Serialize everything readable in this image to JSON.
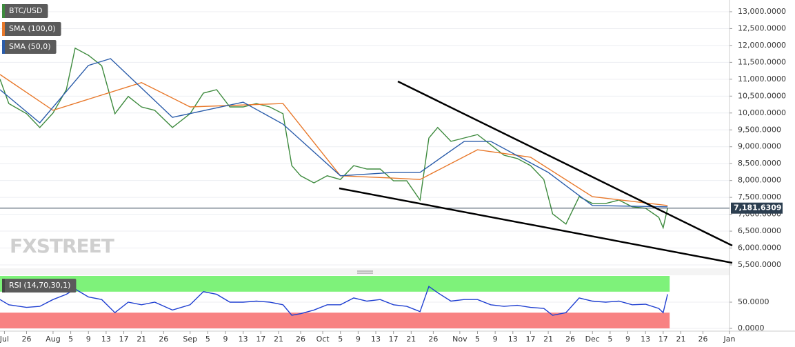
{
  "chart_data": [
    {
      "type": "line",
      "title": "BTC/USD",
      "watermark": "FXSTREET",
      "xlim": [
        "Jul 20",
        "Jan 1"
      ],
      "xticks": [
        {
          "value": "Jul 21",
          "label": "Jul"
        },
        {
          "value": "Jul 26",
          "label": "26"
        },
        {
          "value": "Aug 1",
          "label": "Aug"
        },
        {
          "value": "Aug 5",
          "label": "5"
        },
        {
          "value": "Aug 9",
          "label": "9"
        },
        {
          "value": "Aug 13",
          "label": "13"
        },
        {
          "value": "Aug 17",
          "label": "17"
        },
        {
          "value": "Aug 21",
          "label": "21"
        },
        {
          "value": "Aug 26",
          "label": "26"
        },
        {
          "value": "Sep 1",
          "label": "Sep"
        },
        {
          "value": "Sep 5",
          "label": "5"
        },
        {
          "value": "Sep 9",
          "label": "9"
        },
        {
          "value": "Sep 13",
          "label": "13"
        },
        {
          "value": "Sep 17",
          "label": "17"
        },
        {
          "value": "Sep 21",
          "label": "21"
        },
        {
          "value": "Sep 26",
          "label": "26"
        },
        {
          "value": "Oct 1",
          "label": "Oct"
        },
        {
          "value": "Oct 5",
          "label": "5"
        },
        {
          "value": "Oct 9",
          "label": "9"
        },
        {
          "value": "Oct 13",
          "label": "13"
        },
        {
          "value": "Oct 17",
          "label": "17"
        },
        {
          "value": "Oct 21",
          "label": "21"
        },
        {
          "value": "Oct 26",
          "label": "26"
        },
        {
          "value": "Nov 1",
          "label": "Nov"
        },
        {
          "value": "Nov 5",
          "label": "5"
        },
        {
          "value": "Nov 9",
          "label": "9"
        },
        {
          "value": "Nov 13",
          "label": "13"
        },
        {
          "value": "Nov 17",
          "label": "17"
        },
        {
          "value": "Nov 21",
          "label": "21"
        },
        {
          "value": "Nov 26",
          "label": "26"
        },
        {
          "value": "Dec 1",
          "label": "Dec"
        },
        {
          "value": "Dec 5",
          "label": "5"
        },
        {
          "value": "Dec 9",
          "label": "9"
        },
        {
          "value": "Dec 13",
          "label": "13"
        },
        {
          "value": "Dec 17",
          "label": "17"
        },
        {
          "value": "Dec 21",
          "label": "21"
        },
        {
          "value": "Dec 26",
          "label": "26"
        },
        {
          "value": "Jan 1",
          "label": "Jan"
        }
      ],
      "ylim": [
        5418,
        13347
      ],
      "yticks": [
        {
          "value": 5500,
          "label": "5,500.0000"
        },
        {
          "value": 6000,
          "label": "6,000.0000"
        },
        {
          "value": 6500,
          "label": "6,500.0000"
        },
        {
          "value": 7000,
          "label": "7,000.0000"
        },
        {
          "value": 7500,
          "label": "7,500.0000"
        },
        {
          "value": 8000,
          "label": "8,000.0000"
        },
        {
          "value": 8500,
          "label": "8,500.0000"
        },
        {
          "value": 9000,
          "label": "9,000.0000"
        },
        {
          "value": 9500,
          "label": "9,500.0000"
        },
        {
          "value": 10000,
          "label": "10,000.0000"
        },
        {
          "value": 10500,
          "label": "10,500.0000"
        },
        {
          "value": 11000,
          "label": "11,000.0000"
        },
        {
          "value": 11500,
          "label": "11,500.0000"
        },
        {
          "value": 12000,
          "label": "12,000.0000"
        },
        {
          "value": 12500,
          "label": "12,500.0000"
        },
        {
          "value": 13000,
          "label": "13,000.0000"
        }
      ],
      "grid": true,
      "last_price": {
        "value": 7181.6309,
        "label": "7,181.6309"
      },
      "series": [
        {
          "name": "BTC/USD",
          "color": "#3d8a3d",
          "x": [
            "Jul 20",
            "Jul 22",
            "Jul 26",
            "Jul 29",
            "Aug 1",
            "Aug 4",
            "Aug 6",
            "Aug 9",
            "Aug 12",
            "Aug 15",
            "Aug 18",
            "Aug 21",
            "Aug 24",
            "Aug 28",
            "Sep 1",
            "Sep 4",
            "Sep 7",
            "Sep 10",
            "Sep 13",
            "Sep 16",
            "Sep 19",
            "Sep 22",
            "Sep 24",
            "Sep 26",
            "Sep 29",
            "Oct 2",
            "Oct 5",
            "Oct 8",
            "Oct 11",
            "Oct 14",
            "Oct 17",
            "Oct 20",
            "Oct 23",
            "Oct 25",
            "Oct 27",
            "Oct 30",
            "Nov 2",
            "Nov 5",
            "Nov 8",
            "Nov 11",
            "Nov 14",
            "Nov 17",
            "Nov 20",
            "Nov 22",
            "Nov 25",
            "Nov 28",
            "Dec 1",
            "Dec 4",
            "Dec 7",
            "Dec 10",
            "Dec 13",
            "Dec 16",
            "Dec 17",
            "Dec 18"
          ],
          "values": [
            11000,
            10280,
            9980,
            9570,
            10000,
            10690,
            11920,
            11710,
            11400,
            9980,
            10490,
            10180,
            10080,
            9570,
            9980,
            10590,
            10690,
            10180,
            10180,
            10280,
            10180,
            9980,
            8440,
            8140,
            7930,
            8140,
            8030,
            8440,
            8340,
            8340,
            7990,
            7990,
            7420,
            9260,
            9570,
            9160,
            9260,
            9360,
            9060,
            8750,
            8650,
            8440,
            8030,
            7010,
            6710,
            7520,
            7320,
            7320,
            7420,
            7220,
            7180,
            6910,
            6600,
            7181.6309
          ]
        },
        {
          "name": "SMA (100,0)",
          "color": "#e8782a",
          "x": [
            "Jul 20",
            "Aug 1",
            "Aug 21",
            "Sep 1",
            "Sep 22",
            "Oct 5",
            "Oct 17",
            "Oct 23",
            "Nov 5",
            "Nov 17",
            "Dec 1",
            "Dec 18"
          ],
          "values": [
            11140,
            10080,
            10900,
            10180,
            10280,
            8140,
            8070,
            8030,
            8910,
            8690,
            7520,
            7260
          ]
        },
        {
          "name": "SMA (50,0)",
          "color": "#2a5caa",
          "x": [
            "Jul 20",
            "Jul 29",
            "Aug 9",
            "Aug 14",
            "Aug 28",
            "Sep 13",
            "Sep 22",
            "Oct 5",
            "Oct 17",
            "Oct 23",
            "Nov 2",
            "Nov 8",
            "Nov 21",
            "Dec 1",
            "Dec 18"
          ],
          "values": [
            10690,
            9710,
            11410,
            11610,
            9870,
            10320,
            9670,
            8140,
            8240,
            8240,
            9160,
            9160,
            8240,
            7260,
            7220
          ]
        }
      ]
    },
    {
      "type": "line",
      "title": "RSI (14,70,30,1)",
      "ylim": [
        0,
        100
      ],
      "yticks": [
        {
          "value": 50,
          "label": "50.0000"
        },
        {
          "value": 0,
          "label": "0.0000"
        }
      ],
      "bands": {
        "upper": 70,
        "lower": 30
      },
      "series": [
        {
          "name": "RSI",
          "color": "#1f3fd1",
          "x": [
            "Jul 20",
            "Jul 22",
            "Jul 26",
            "Jul 29",
            "Aug 1",
            "Aug 4",
            "Aug 6",
            "Aug 9",
            "Aug 12",
            "Aug 15",
            "Aug 18",
            "Aug 21",
            "Aug 24",
            "Aug 28",
            "Sep 1",
            "Sep 4",
            "Sep 7",
            "Sep 10",
            "Sep 13",
            "Sep 16",
            "Sep 19",
            "Sep 22",
            "Sep 24",
            "Sep 26",
            "Sep 29",
            "Oct 2",
            "Oct 5",
            "Oct 8",
            "Oct 11",
            "Oct 14",
            "Oct 17",
            "Oct 20",
            "Oct 23",
            "Oct 25",
            "Oct 27",
            "Oct 30",
            "Nov 2",
            "Nov 5",
            "Nov 8",
            "Nov 11",
            "Nov 14",
            "Nov 17",
            "Nov 20",
            "Nov 22",
            "Nov 25",
            "Nov 28",
            "Dec 1",
            "Dec 4",
            "Dec 7",
            "Dec 10",
            "Dec 13",
            "Dec 16",
            "Dec 17",
            "Dec 18"
          ],
          "values": [
            55,
            45,
            40,
            42,
            55,
            65,
            75,
            60,
            55,
            30,
            50,
            45,
            50,
            35,
            45,
            70,
            65,
            50,
            50,
            52,
            50,
            45,
            25,
            28,
            35,
            45,
            45,
            58,
            52,
            55,
            45,
            42,
            32,
            80,
            68,
            52,
            55,
            55,
            45,
            42,
            44,
            40,
            38,
            25,
            30,
            58,
            52,
            50,
            52,
            45,
            46,
            38,
            30,
            65
          ]
        }
      ]
    }
  ]
}
